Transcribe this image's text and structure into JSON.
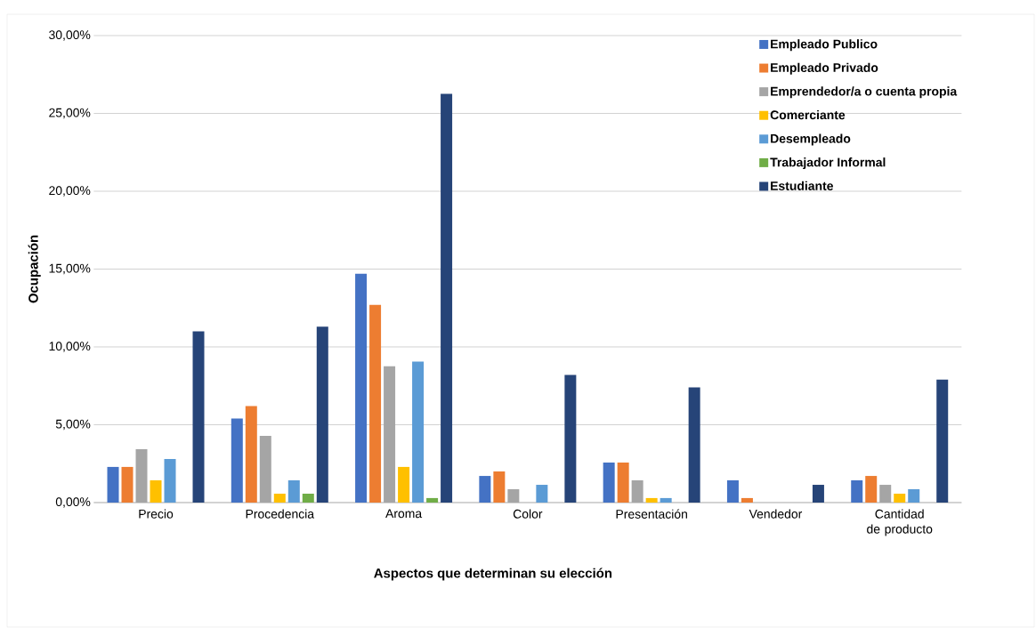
{
  "chart_data": {
    "type": "bar",
    "xlabel": "Aspectos que determinan su elección",
    "ylabel": "Ocupación",
    "categories": [
      "Precio",
      "Procedencia",
      "Aroma",
      "Color",
      "Presentación",
      "Vendedor",
      "Cantidad de producto"
    ],
    "series": [
      {
        "name": "Empleado Publico",
        "color": "#4472c4",
        "values": [
          2.29,
          5.4,
          14.7,
          1.71,
          2.57,
          1.43,
          1.43
        ]
      },
      {
        "name": "Empleado Privado",
        "color": "#ed7d31",
        "values": [
          2.29,
          6.2,
          12.7,
          2.0,
          2.57,
          0.29,
          1.71
        ]
      },
      {
        "name": "Emprendedor/a o cuenta propia",
        "color": "#a5a5a5",
        "values": [
          3.43,
          4.29,
          8.75,
          0.86,
          1.43,
          0,
          1.14
        ]
      },
      {
        "name": "Comerciante",
        "color": "#ffc000",
        "values": [
          1.43,
          0.57,
          2.29,
          0,
          0.29,
          0,
          0.57
        ]
      },
      {
        "name": "Desempleado",
        "color": "#5b9bd5",
        "values": [
          2.8,
          1.43,
          9.05,
          1.14,
          0.29,
          0,
          0.86
        ]
      },
      {
        "name": "Trabajador Informal",
        "color": "#70ad47",
        "values": [
          0,
          0.57,
          0.29,
          0,
          0,
          0,
          0
        ]
      },
      {
        "name": "Estudiante",
        "color": "#264478",
        "values": [
          11.0,
          11.3,
          26.25,
          8.2,
          7.4,
          1.14,
          7.9
        ]
      }
    ],
    "ylim": [
      0,
      30
    ],
    "yticks": [
      {
        "value": 0,
        "label": "0,00%"
      },
      {
        "value": 5,
        "label": "5,00%"
      },
      {
        "value": 10,
        "label": "10,00%"
      },
      {
        "value": 15,
        "label": "15,00%"
      },
      {
        "value": 20,
        "label": "20,00%"
      },
      {
        "value": 25,
        "label": "25,00%"
      },
      {
        "value": 30,
        "label": "30,00%"
      }
    ],
    "grid": "y",
    "legend": "top right"
  }
}
